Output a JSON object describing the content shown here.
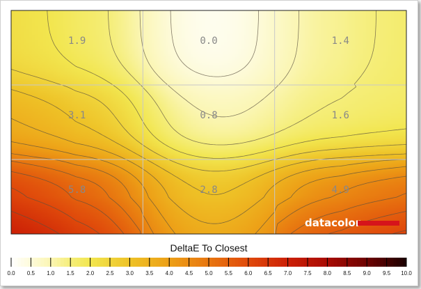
{
  "chart_data": {
    "type": "heatmap",
    "title": "DeltaE To Closest",
    "grid": {
      "rows": 3,
      "cols": 3
    },
    "cells": [
      [
        1.9,
        0.0,
        1.4
      ],
      [
        3.1,
        0.8,
        1.6
      ],
      [
        5.8,
        2.8,
        4.9
      ]
    ],
    "cell_labels": [
      [
        "1.9",
        "0.0",
        "1.4"
      ],
      [
        "3.1",
        "0.8",
        "1.6"
      ],
      [
        "5.8",
        "2.8",
        "4.9"
      ]
    ],
    "colorscale": {
      "min": 0,
      "max": 10,
      "ticks": [
        "0.0",
        "0.5",
        "1.0",
        "1.5",
        "2.0",
        "2.5",
        "3.0",
        "3.5",
        "4.0",
        "4.5",
        "5.0",
        "5.5",
        "6.0",
        "6.5",
        "7.0",
        "7.5",
        "8.0",
        "8.5",
        "9.0",
        "9.5",
        "10.0"
      ],
      "stops": [
        {
          "value": 0.0,
          "color": "#ffffff"
        },
        {
          "value": 1.0,
          "color": "#fbf6b4"
        },
        {
          "value": 1.5,
          "color": "#f5ee7a"
        },
        {
          "value": 2.0,
          "color": "#f2e64f"
        },
        {
          "value": 3.0,
          "color": "#eec227"
        },
        {
          "value": 4.0,
          "color": "#eda017"
        },
        {
          "value": 5.0,
          "color": "#e87610"
        },
        {
          "value": 6.0,
          "color": "#e04a0b"
        },
        {
          "value": 7.0,
          "color": "#cc2006"
        },
        {
          "value": 8.0,
          "color": "#a80b03"
        },
        {
          "value": 9.0,
          "color": "#6e0201"
        },
        {
          "value": 10.0,
          "color": "#1a0000"
        }
      ]
    },
    "contour_lines": true,
    "grid_lines": true
  },
  "branding": {
    "logo_text": "datacolor",
    "logo_accent": "#d6141b"
  }
}
